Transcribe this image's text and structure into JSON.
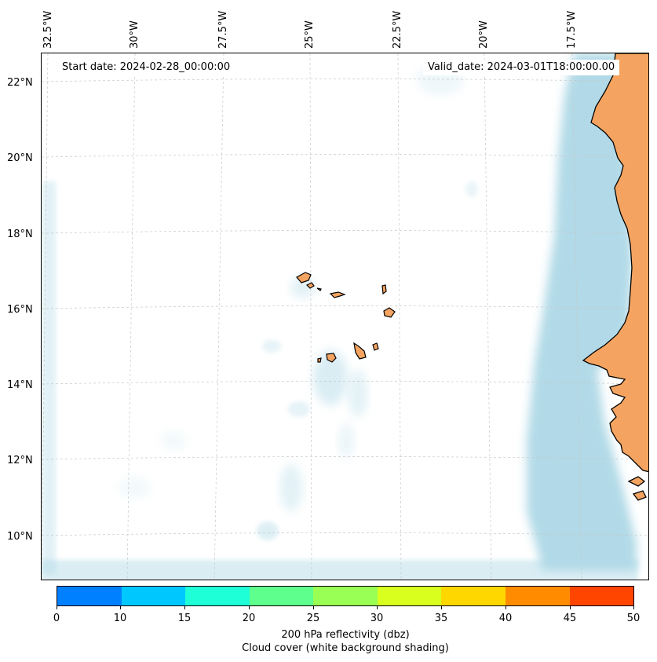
{
  "map": {
    "start_date": "Start date: 2024-02-28_00:00:00",
    "valid_date": "Valid_date: 2024-03-01T18:00:00.00",
    "lon_labels": [
      "32.5°W",
      "30°W",
      "27.5°W",
      "25°W",
      "22.5°W",
      "20°W",
      "17.5°W"
    ],
    "lat_labels": [
      "22°N",
      "20°N",
      "18°N",
      "16°N",
      "14°N",
      "12°N",
      "10°N"
    ],
    "colors": {
      "land": "#f4a460",
      "cloud": "#add8e6",
      "coast": "#000000"
    }
  },
  "colorbar": {
    "ticks": [
      "0",
      "10",
      "15",
      "20",
      "25",
      "30",
      "35",
      "40",
      "45",
      "50"
    ],
    "colors": [
      "#0080ff",
      "#00c8ff",
      "#1effd8",
      "#5eff8c",
      "#9aff54",
      "#d8ff1e",
      "#ffd700",
      "#ff8c00",
      "#ff4500"
    ],
    "title": "200 hPa reflectivity (dbz)",
    "subtitle": "Cloud cover (white background shading)"
  }
}
